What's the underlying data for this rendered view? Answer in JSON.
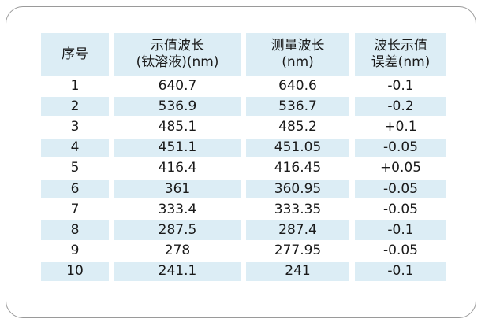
{
  "table": {
    "header": [
      [
        "序号"
      ],
      [
        "示值波长",
        "(钛溶液)(nm)"
      ],
      [
        "测量波长",
        "(nm)"
      ],
      [
        "波长示值",
        "误差(nm)"
      ]
    ],
    "rows": [
      [
        "1",
        "640.7",
        "640.6",
        "-0.1"
      ],
      [
        "2",
        "536.9",
        "536.7",
        "-0.2"
      ],
      [
        "3",
        "485.1",
        "485.2",
        "+0.1"
      ],
      [
        "4",
        "451.1",
        "451.05",
        "-0.05"
      ],
      [
        "5",
        "416.4",
        "416.45",
        "+0.05"
      ],
      [
        "6",
        "361",
        "360.95",
        "-0.05"
      ],
      [
        "7",
        "333.4",
        "333.35",
        "-0.05"
      ],
      [
        "8",
        "287.5",
        "287.4",
        "-0.1"
      ],
      [
        "9",
        "278",
        "277.95",
        "-0.05"
      ],
      [
        "10",
        "241.1",
        "241",
        "-0.1"
      ]
    ]
  }
}
